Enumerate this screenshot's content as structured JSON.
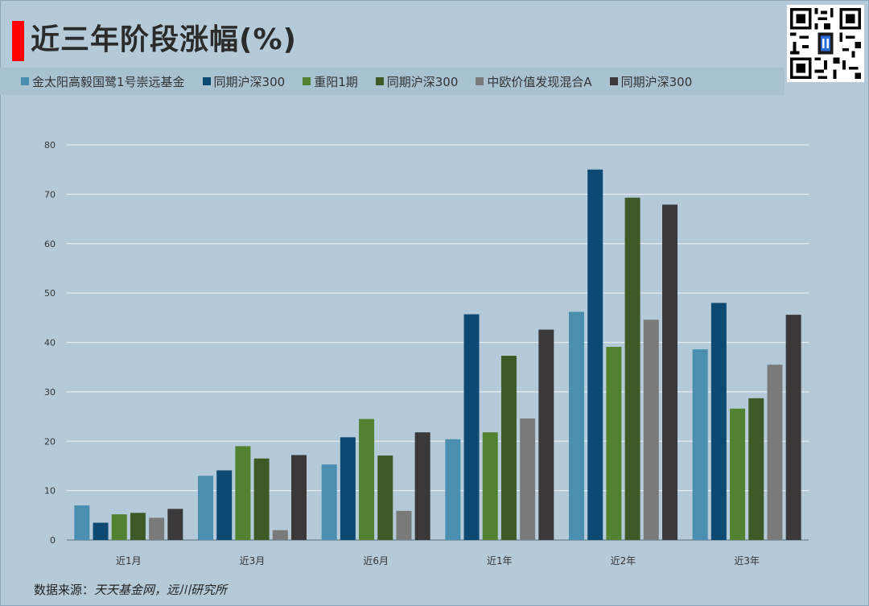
{
  "title": "近三年阶段涨幅(%)",
  "source": {
    "prefix": "数据来源：",
    "text": "天天基金网，远川研究所"
  },
  "colors": {
    "series": [
      "#4a8fb0",
      "#0d4a73",
      "#52822f",
      "#3d5a26",
      "#7a7a7a",
      "#3a3838"
    ],
    "grid": "#e4ecf1",
    "background": "#b4cad8",
    "title_marker": "#ff0000"
  },
  "chart_data": {
    "type": "bar",
    "categories": [
      "近1月",
      "近3月",
      "近6月",
      "近1年",
      "近2年",
      "近3年"
    ],
    "series": [
      {
        "name": "金太阳高毅国鹭1号崇远基金",
        "values": [
          7.0,
          13.0,
          15.3,
          20.4,
          46.2,
          38.6
        ]
      },
      {
        "name": "同期沪深300",
        "values": [
          3.5,
          14.1,
          20.8,
          45.7,
          75.0,
          48.0
        ]
      },
      {
        "name": "重阳1期",
        "values": [
          5.2,
          19.0,
          24.5,
          21.8,
          39.1,
          26.6
        ]
      },
      {
        "name": "同期沪深300",
        "values": [
          5.5,
          16.5,
          17.1,
          37.3,
          69.3,
          28.7
        ]
      },
      {
        "name": "中欧价值发现混合A",
        "values": [
          4.5,
          2.0,
          5.9,
          24.6,
          44.6,
          35.5
        ]
      },
      {
        "name": "同期沪深300",
        "values": [
          6.3,
          17.2,
          21.8,
          42.6,
          67.9,
          45.6
        ]
      }
    ],
    "ylim": [
      0,
      80
    ],
    "yticks": [
      0,
      10,
      20,
      30,
      40,
      50,
      60,
      70,
      80
    ],
    "grid": true,
    "legend": "top"
  }
}
